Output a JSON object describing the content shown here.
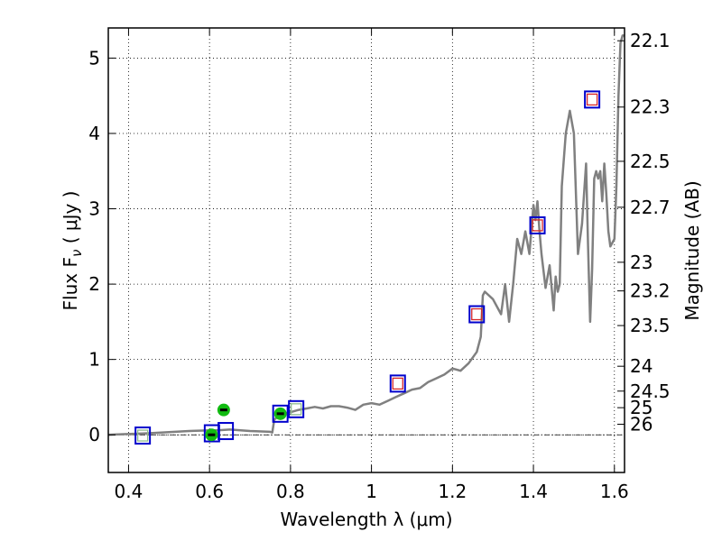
{
  "chart_data": {
    "type": "line",
    "xlabel": "Wavelength  λ (μm)",
    "ylabel": "Flux  F",
    "ylabel_subscript": "ν",
    "ylabel_unit": " ( μJy )",
    "y2label": "Magnitude (AB)",
    "xlim": [
      0.35,
      1.625
    ],
    "ylim": [
      -0.5,
      5.4
    ],
    "grid": true,
    "x_ticks": [
      0.4,
      0.6,
      0.8,
      1.0,
      1.2,
      1.4,
      1.6
    ],
    "x_tick_labels": [
      "0.4",
      "0.6",
      "0.8",
      "1",
      "1.2",
      "1.4",
      "1.6"
    ],
    "y_ticks": [
      0,
      1,
      2,
      3,
      4,
      5
    ],
    "y_tick_labels": [
      "0",
      "1",
      "2",
      "3",
      "4",
      "5"
    ],
    "mag_ticks": [
      {
        "label": "22.1",
        "flux": 5.23
      },
      {
        "label": "22.3",
        "flux": 4.35
      },
      {
        "label": "22.5",
        "flux": 3.63
      },
      {
        "label": "22.7",
        "flux": 3.02
      },
      {
        "label": "23",
        "flux": 2.29
      },
      {
        "label": "23.2",
        "flux": 1.91
      },
      {
        "label": "23.5",
        "flux": 1.45
      },
      {
        "label": "24",
        "flux": 0.91
      },
      {
        "label": "24.5",
        "flux": 0.58
      },
      {
        "label": "25",
        "flux": 0.36
      },
      {
        "label": "26",
        "flux": 0.14
      }
    ],
    "model_sed": {
      "name": "model spectrum",
      "color": "#808080",
      "x": [
        0.35,
        0.45,
        0.55,
        0.6,
        0.62,
        0.65,
        0.7,
        0.75,
        0.755,
        0.76,
        0.77,
        0.78,
        0.8,
        0.82,
        0.84,
        0.86,
        0.88,
        0.9,
        0.92,
        0.94,
        0.96,
        0.98,
        1.0,
        1.02,
        1.04,
        1.06,
        1.08,
        1.1,
        1.12,
        1.14,
        1.16,
        1.18,
        1.2,
        1.22,
        1.24,
        1.26,
        1.27,
        1.275,
        1.28,
        1.3,
        1.32,
        1.33,
        1.34,
        1.35,
        1.36,
        1.37,
        1.38,
        1.39,
        1.4,
        1.405,
        1.41,
        1.415,
        1.42,
        1.43,
        1.44,
        1.45,
        1.455,
        1.46,
        1.465,
        1.47,
        1.48,
        1.49,
        1.5,
        1.51,
        1.52,
        1.53,
        1.535,
        1.54,
        1.545,
        1.55,
        1.555,
        1.56,
        1.565,
        1.57,
        1.575,
        1.58,
        1.585,
        1.59,
        1.6,
        1.605,
        1.61,
        1.615,
        1.62,
        1.625
      ],
      "y": [
        0.0,
        0.02,
        0.05,
        0.06,
        0.06,
        0.07,
        0.05,
        0.04,
        0.03,
        0.2,
        0.25,
        0.27,
        0.3,
        0.33,
        0.35,
        0.37,
        0.35,
        0.38,
        0.38,
        0.36,
        0.33,
        0.4,
        0.42,
        0.4,
        0.45,
        0.5,
        0.55,
        0.6,
        0.62,
        0.7,
        0.75,
        0.8,
        0.88,
        0.85,
        0.95,
        1.1,
        1.3,
        1.85,
        1.9,
        1.8,
        1.6,
        2.0,
        1.5,
        2.0,
        2.6,
        2.4,
        2.7,
        2.4,
        3.05,
        2.85,
        3.1,
        2.7,
        2.4,
        1.95,
        2.25,
        1.65,
        2.1,
        1.9,
        2.0,
        3.3,
        4.0,
        4.3,
        4.0,
        2.4,
        2.8,
        3.6,
        2.5,
        1.5,
        2.2,
        3.4,
        3.5,
        3.4,
        3.5,
        3.1,
        3.6,
        3.2,
        2.7,
        2.5,
        2.6,
        3.3,
        4.5,
        5.2,
        5.3,
        5.3
      ]
    },
    "observed_squares": {
      "name": "observed photometry",
      "color": "#0000cc",
      "x": [
        0.435,
        0.606,
        0.64,
        0.775,
        0.814,
        1.065,
        1.26,
        1.41,
        1.545
      ],
      "y": [
        -0.01,
        0.02,
        0.05,
        0.28,
        0.34,
        0.68,
        1.6,
        2.78,
        4.45
      ]
    },
    "model_squares": {
      "name": "model photometry",
      "color": "#d62728",
      "x": [
        1.065,
        1.26,
        1.41,
        1.545
      ],
      "y": [
        0.68,
        1.6,
        2.78,
        4.45
      ]
    },
    "model_squares_faint": {
      "name": "model photometry (faint bands)",
      "color": "#8fbc8f",
      "x": [
        0.435,
        0.814
      ],
      "y": [
        -0.01,
        0.34
      ]
    },
    "green_points": {
      "name": "green measurements",
      "color": "#11bb11",
      "x": [
        0.605,
        0.635,
        0.775
      ],
      "y": [
        0.0,
        0.33,
        0.28
      ]
    }
  }
}
